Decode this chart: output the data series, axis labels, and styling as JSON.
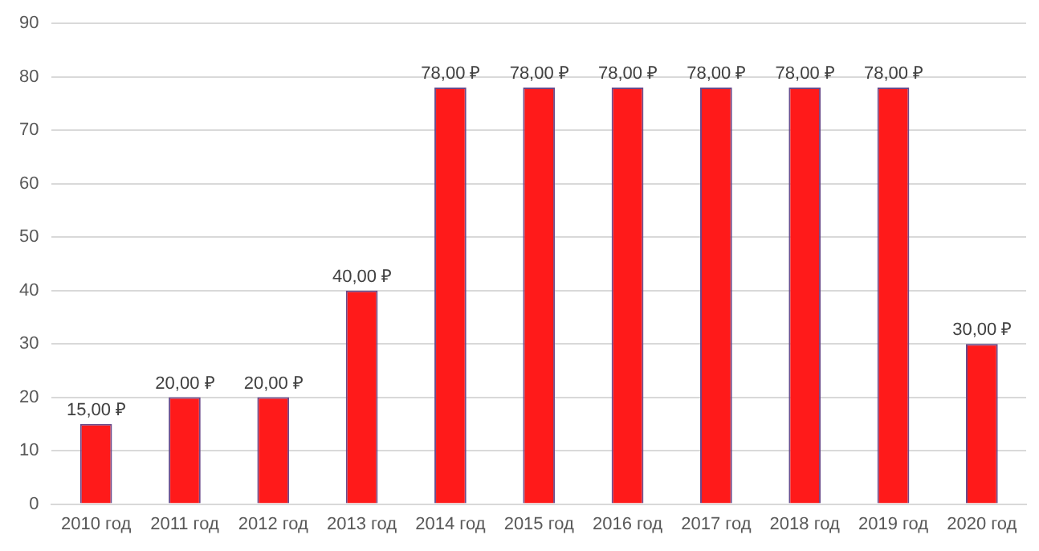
{
  "chart_data": {
    "type": "bar",
    "categories": [
      "2010 год",
      "2011 год",
      "2012 год",
      "2013 год",
      "2014 год",
      "2015 год",
      "2016 год",
      "2017 год",
      "2018 год",
      "2019 год",
      "2020 год"
    ],
    "values": [
      15,
      20,
      20,
      40,
      78,
      78,
      78,
      78,
      78,
      78,
      30
    ],
    "value_labels": [
      "15,00 ₽",
      "20,00 ₽",
      "20,00 ₽",
      "40,00 ₽",
      "78,00 ₽",
      "78,00 ₽",
      "78,00 ₽",
      "78,00 ₽",
      "78,00 ₽",
      "78,00 ₽",
      "30,00 ₽"
    ],
    "color": "#ff1a1a",
    "ylim": [
      0,
      90
    ],
    "yticks": [
      0,
      10,
      20,
      30,
      40,
      50,
      60,
      70,
      80,
      90
    ],
    "grid": "y",
    "legend": false
  }
}
